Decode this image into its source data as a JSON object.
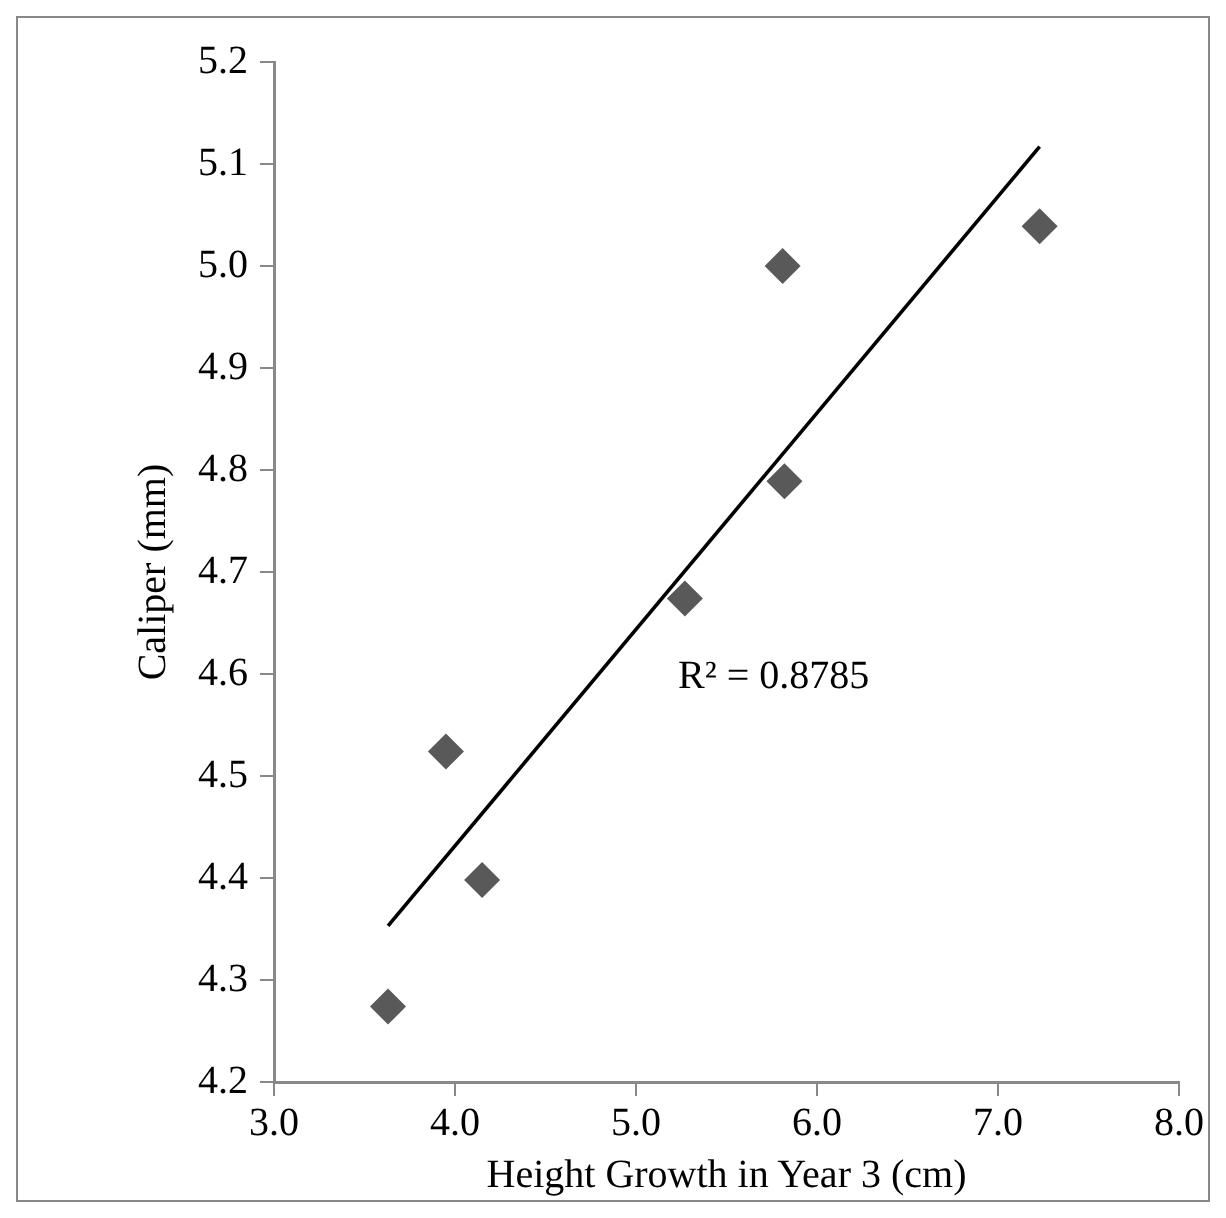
{
  "chart_data": {
    "type": "scatter",
    "xlabel": "Height Growth in Year 3 (cm)",
    "ylabel": "Caliper (mm)",
    "xlim": [
      3.0,
      8.0
    ],
    "xticks": [
      {
        "value": 3,
        "label": "3.0"
      },
      {
        "value": 4,
        "label": "4.0"
      },
      {
        "value": 5,
        "label": "5.0"
      },
      {
        "value": 6,
        "label": "6.0"
      },
      {
        "value": 7,
        "label": "7.0"
      },
      {
        "value": 8,
        "label": "8.0"
      }
    ],
    "ylim": [
      4.2,
      5.2
    ],
    "yticks": [
      4.2,
      4.3,
      4.4,
      4.5,
      4.6,
      4.7,
      4.8,
      4.9,
      {
        "value": 5.0,
        "label": "5.0"
      },
      5.1,
      5.2
    ],
    "grid": false,
    "legend": false,
    "marker": "diamond",
    "series": [
      {
        "color": "#595959",
        "x": [
          3.63,
          3.95,
          4.15,
          5.27,
          5.81,
          5.82,
          7.23
        ],
        "values": [
          4.274,
          4.524,
          4.398,
          4.674,
          5.0,
          4.789,
          5.039
        ]
      },
      {
        "type": "line",
        "color": "#000000",
        "marker": "none",
        "x": [
          3.63,
          7.23
        ],
        "values": [
          4.353,
          5.117
        ]
      }
    ],
    "annotations": [
      "R² = 0.8785"
    ]
  }
}
